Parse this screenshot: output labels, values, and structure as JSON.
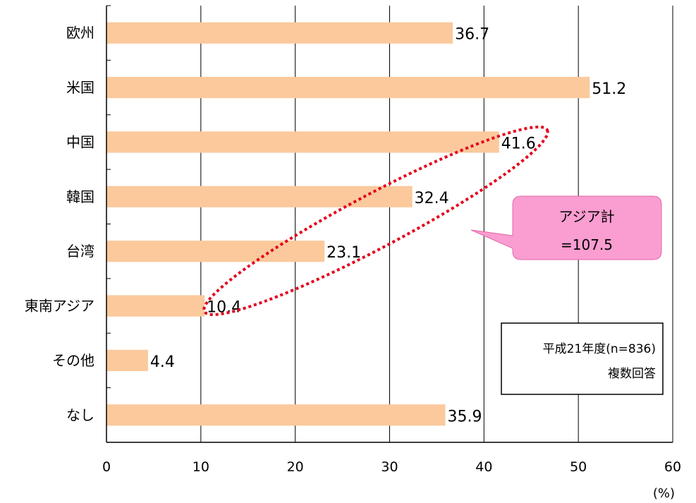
{
  "chart_data": {
    "type": "bar",
    "orientation": "horizontal",
    "categories": [
      "欧州",
      "米国",
      "中国",
      "韓国",
      "台湾",
      "東南アジア",
      "その他",
      "なし"
    ],
    "values": [
      36.7,
      51.2,
      41.6,
      32.4,
      23.1,
      10.4,
      4.4,
      35.9
    ],
    "value_labels": [
      "36.7",
      "51.2",
      "41.6",
      "32.4",
      "23.1",
      "10.4",
      "4.4",
      "35.9"
    ],
    "xlim": [
      0,
      60
    ],
    "x_ticks": [
      "0",
      "10",
      "20",
      "30",
      "40",
      "50",
      "60"
    ],
    "x_unit": "(%)",
    "grid": "vertical",
    "bar_color": "#fbc99c",
    "highlight": {
      "categories": [
        "中国",
        "韓国",
        "台湾",
        "東南アジア"
      ],
      "style": "dotted-ellipse",
      "color": "#e4001b"
    },
    "callout": {
      "line1": "アジア計",
      "line2": "=107.5",
      "color": "#fa9dd1"
    },
    "note": {
      "line1": "平成21年度(n=836)",
      "line2": "複数回答"
    }
  }
}
